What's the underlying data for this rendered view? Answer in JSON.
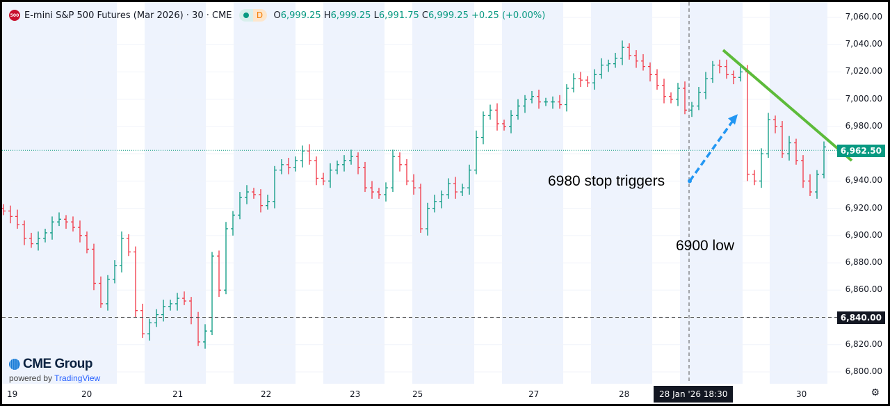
{
  "header": {
    "symbol_icon": "500",
    "title": "E-mini S&P 500 Futures (Mar 2026) · 30 · CME",
    "status_dot": "market-open",
    "status_letter": "D",
    "open_label": "O",
    "open": "6,999.25",
    "high_label": "H",
    "high": "6,999.25",
    "low_label": "L",
    "low": "6,991.75",
    "close_label": "C",
    "close": "6,999.25",
    "change": "+0.25 (+0.00%)"
  },
  "branding": {
    "logo": "CME Group",
    "powered_by": "powered by",
    "tradingview": "TradingView"
  },
  "colors": {
    "up": "#089981",
    "down": "#f23645",
    "trendline": "#5dbb3a",
    "arrow": "#2196f3",
    "session_band": "#eef3fd",
    "last_price": "#089981"
  },
  "crosshair": {
    "time_label": "28 Jan '26   18:30",
    "price_label": "6,840.00"
  },
  "settings_icon": "gear-icon",
  "chart_data": {
    "type": "ohlc-bar",
    "symbol": "E-mini S&P 500 Futures (Mar 2026)",
    "interval": "30",
    "ylim": [
      6790,
      7070
    ],
    "y_ticks": [
      "7,060.00",
      "7,040.00",
      "7,020.00",
      "7,000.00",
      "6,980.00",
      "6,940.00",
      "6,920.00",
      "6,900.00",
      "6,880.00",
      "6,860.00",
      "6,820.00",
      "6,800.00"
    ],
    "y_tick_values": [
      7060,
      7040,
      7020,
      7000,
      6980,
      6940,
      6920,
      6900,
      6880,
      6860,
      6820,
      6800
    ],
    "x_ticks": [
      "19",
      "20",
      "21",
      "22",
      "23",
      "25",
      "27",
      "28",
      "30"
    ],
    "last_price": 6962.5,
    "last_price_label": "6,962.50",
    "closes": [
      6918,
      6914,
      6908,
      6898,
      6894,
      6898,
      6902,
      6910,
      6912,
      6910,
      6906,
      6900,
      6890,
      6865,
      6850,
      6868,
      6878,
      6898,
      6888,
      6845,
      6828,
      6836,
      6842,
      6848,
      6850,
      6854,
      6852,
      6840,
      6822,
      6830,
      6885,
      6860,
      6905,
      6915,
      6928,
      6932,
      6930,
      6922,
      6925,
      6948,
      6952,
      6950,
      6955,
      6962,
      6955,
      6942,
      6940,
      6948,
      6952,
      6955,
      6958,
      6950,
      6935,
      6932,
      6930,
      6935,
      6958,
      6952,
      6940,
      6935,
      6905,
      6920,
      6925,
      6930,
      6938,
      6932,
      6935,
      6948,
      6972,
      6988,
      6992,
      6982,
      6980,
      6988,
      6995,
      7000,
      7002,
      6998,
      6998,
      6998,
      6996,
      7008,
      7015,
      7014,
      7012,
      7018,
      7025,
      7026,
      7030,
      7038,
      7032,
      7028,
      7024,
      7018,
      7010,
      7002,
      7000,
      7008,
      6992,
      6995,
      7005,
      7015,
      7025,
      7024,
      7018,
      7016,
      7020,
      6945,
      6940,
      6960,
      6985,
      6980,
      6960,
      6968,
      6955,
      6940,
      6932,
      6945,
      6965
    ],
    "annotations": [
      {
        "type": "trendline",
        "from_price": 7036,
        "to_price": 6955
      },
      {
        "type": "arrow",
        "from_price": 6940,
        "to_price": 6989
      },
      {
        "type": "text",
        "text": "6980 stop triggers"
      },
      {
        "type": "text",
        "text": "6900 low"
      }
    ]
  }
}
